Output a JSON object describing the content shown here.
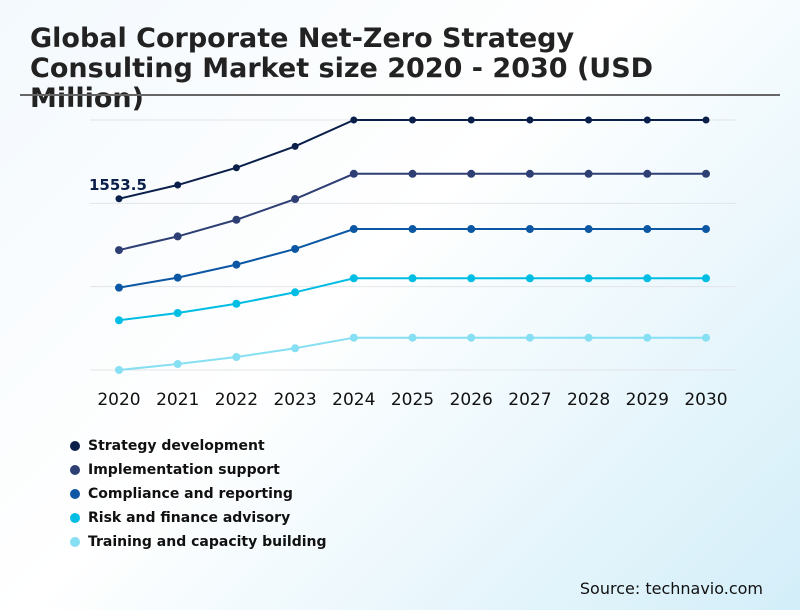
{
  "chart_data": {
    "type": "line",
    "title": "Global Corporate Net-Zero Strategy Consulting Market size 2020 - 2030 (USD Million)",
    "xlabel": "",
    "ylabel": "",
    "categories": [
      "2020",
      "2021",
      "2022",
      "2023",
      "2024",
      "2025",
      "2026",
      "2027",
      "2028",
      "2029",
      "2030"
    ],
    "ylim": [
      0,
      2268
    ],
    "grid": true,
    "legend_position": "bottom-left",
    "annotations": [
      {
        "series": "Strategy development",
        "x": "2020",
        "label": "1553.5"
      }
    ],
    "series": [
      {
        "name": "Strategy development",
        "color": "#0b1f4b",
        "values": [
          1553.5,
          1678,
          1835,
          2029,
          2268,
          2268,
          2268,
          2268,
          2268,
          2268,
          2268
        ]
      },
      {
        "name": "Implementation support",
        "color": "#2e3f74",
        "values": [
          1088,
          1212,
          1363,
          1551,
          1780,
          1780,
          1780,
          1780,
          1780,
          1780,
          1780
        ]
      },
      {
        "name": "Compliance and reporting",
        "color": "#0b57a4",
        "values": [
          747,
          838,
          956,
          1098,
          1279,
          1279,
          1279,
          1279,
          1279,
          1279,
          1279
        ]
      },
      {
        "name": "Risk and finance advisory",
        "color": "#00bde3",
        "values": [
          451,
          517,
          601,
          705,
          832,
          832,
          832,
          832,
          832,
          832,
          832
        ]
      },
      {
        "name": "Training and capacity building",
        "color": "#86dff2",
        "values": [
          0,
          54,
          118,
          197,
          293,
          293,
          293,
          293,
          293,
          293,
          293
        ]
      }
    ]
  },
  "source": "Source: technavio.com"
}
